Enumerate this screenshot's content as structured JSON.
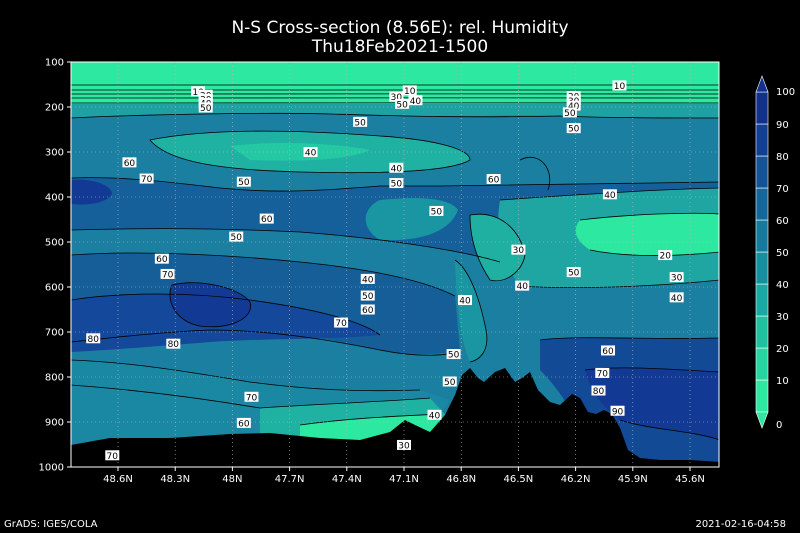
{
  "title": "N-S Cross-section (8.56E): rel. Humidity",
  "subtitle": "Thu18Feb2021-1500",
  "footer_left": "GrADS: IGES/COLA",
  "footer_right": "2021-02-16-04:58",
  "chart_data": {
    "type": "contour",
    "x_ticks": [
      "48.6N",
      "48.3N",
      "48N",
      "47.7N",
      "47.4N",
      "47.1N",
      "46.8N",
      "46.5N",
      "46.2N",
      "45.9N",
      "45.6N"
    ],
    "y_ticks": [
      "100",
      "200",
      "300",
      "400",
      "500",
      "600",
      "700",
      "800",
      "900",
      "1000"
    ],
    "ylim": [
      1000,
      100
    ],
    "grid": true,
    "colorbar": {
      "levels": [
        "0",
        "10",
        "20",
        "30",
        "40",
        "50",
        "60",
        "70",
        "80",
        "90",
        "100"
      ],
      "colors": [
        "#2ce8a0",
        "#25d6a0",
        "#1fc2a0",
        "#1aa9a2",
        "#1690a0",
        "#157a9e",
        "#15669a",
        "#145396",
        "#133f92",
        "#12318a"
      ]
    },
    "contour_labels": [
      {
        "v": "10",
        "x": 48.18,
        "p": 165
      },
      {
        "v": "20",
        "x": 48.14,
        "p": 173
      },
      {
        "v": "30",
        "x": 48.14,
        "p": 182
      },
      {
        "v": "40",
        "x": 48.14,
        "p": 191
      },
      {
        "v": "50",
        "x": 48.14,
        "p": 201
      },
      {
        "v": "10",
        "x": 47.07,
        "p": 163
      },
      {
        "v": "30",
        "x": 47.14,
        "p": 177
      },
      {
        "v": "40",
        "x": 47.04,
        "p": 185
      },
      {
        "v": "50",
        "x": 47.11,
        "p": 193
      },
      {
        "v": "20",
        "x": 46.21,
        "p": 176
      },
      {
        "v": "30",
        "x": 46.21,
        "p": 186
      },
      {
        "v": "40",
        "x": 46.21,
        "p": 197
      },
      {
        "v": "10",
        "x": 45.97,
        "p": 152
      },
      {
        "v": "50",
        "x": 47.33,
        "p": 233
      },
      {
        "v": "40",
        "x": 47.59,
        "p": 300
      },
      {
        "v": "50",
        "x": 46.23,
        "p": 212
      },
      {
        "v": "50",
        "x": 46.21,
        "p": 247
      },
      {
        "v": "60",
        "x": 48.54,
        "p": 323
      },
      {
        "v": "70",
        "x": 48.45,
        "p": 359
      },
      {
        "v": "50",
        "x": 47.94,
        "p": 366
      },
      {
        "v": "40",
        "x": 47.14,
        "p": 335
      },
      {
        "v": "50",
        "x": 47.14,
        "p": 369
      },
      {
        "v": "60",
        "x": 46.63,
        "p": 360
      },
      {
        "v": "40",
        "x": 46.02,
        "p": 394
      },
      {
        "v": "60",
        "x": 47.82,
        "p": 448
      },
      {
        "v": "50",
        "x": 47.98,
        "p": 488
      },
      {
        "v": "50",
        "x": 46.93,
        "p": 431
      },
      {
        "v": "30",
        "x": 46.5,
        "p": 517
      },
      {
        "v": "20",
        "x": 45.73,
        "p": 529
      },
      {
        "v": "30",
        "x": 45.67,
        "p": 578
      },
      {
        "v": "50",
        "x": 46.21,
        "p": 567
      },
      {
        "v": "40",
        "x": 46.48,
        "p": 597
      },
      {
        "v": "40",
        "x": 45.67,
        "p": 623
      },
      {
        "v": "60",
        "x": 48.37,
        "p": 537
      },
      {
        "v": "70",
        "x": 48.34,
        "p": 571
      },
      {
        "v": "40",
        "x": 47.29,
        "p": 582
      },
      {
        "v": "50",
        "x": 47.29,
        "p": 619
      },
      {
        "v": "60",
        "x": 47.29,
        "p": 650
      },
      {
        "v": "70",
        "x": 47.43,
        "p": 679
      },
      {
        "v": "40",
        "x": 46.78,
        "p": 629
      },
      {
        "v": "80",
        "x": 48.73,
        "p": 714
      },
      {
        "v": "80",
        "x": 48.31,
        "p": 726
      },
      {
        "v": "70",
        "x": 47.9,
        "p": 844
      },
      {
        "v": "60",
        "x": 47.94,
        "p": 902
      },
      {
        "v": "70",
        "x": 48.63,
        "p": 974
      },
      {
        "v": "50",
        "x": 46.84,
        "p": 749
      },
      {
        "v": "50",
        "x": 46.86,
        "p": 810
      },
      {
        "v": "40",
        "x": 46.94,
        "p": 884
      },
      {
        "v": "30",
        "x": 47.1,
        "p": 951
      },
      {
        "v": "60",
        "x": 46.03,
        "p": 741
      },
      {
        "v": "70",
        "x": 46.06,
        "p": 791
      },
      {
        "v": "80",
        "x": 46.08,
        "p": 830
      },
      {
        "v": "90",
        "x": 45.98,
        "p": 875
      }
    ]
  }
}
